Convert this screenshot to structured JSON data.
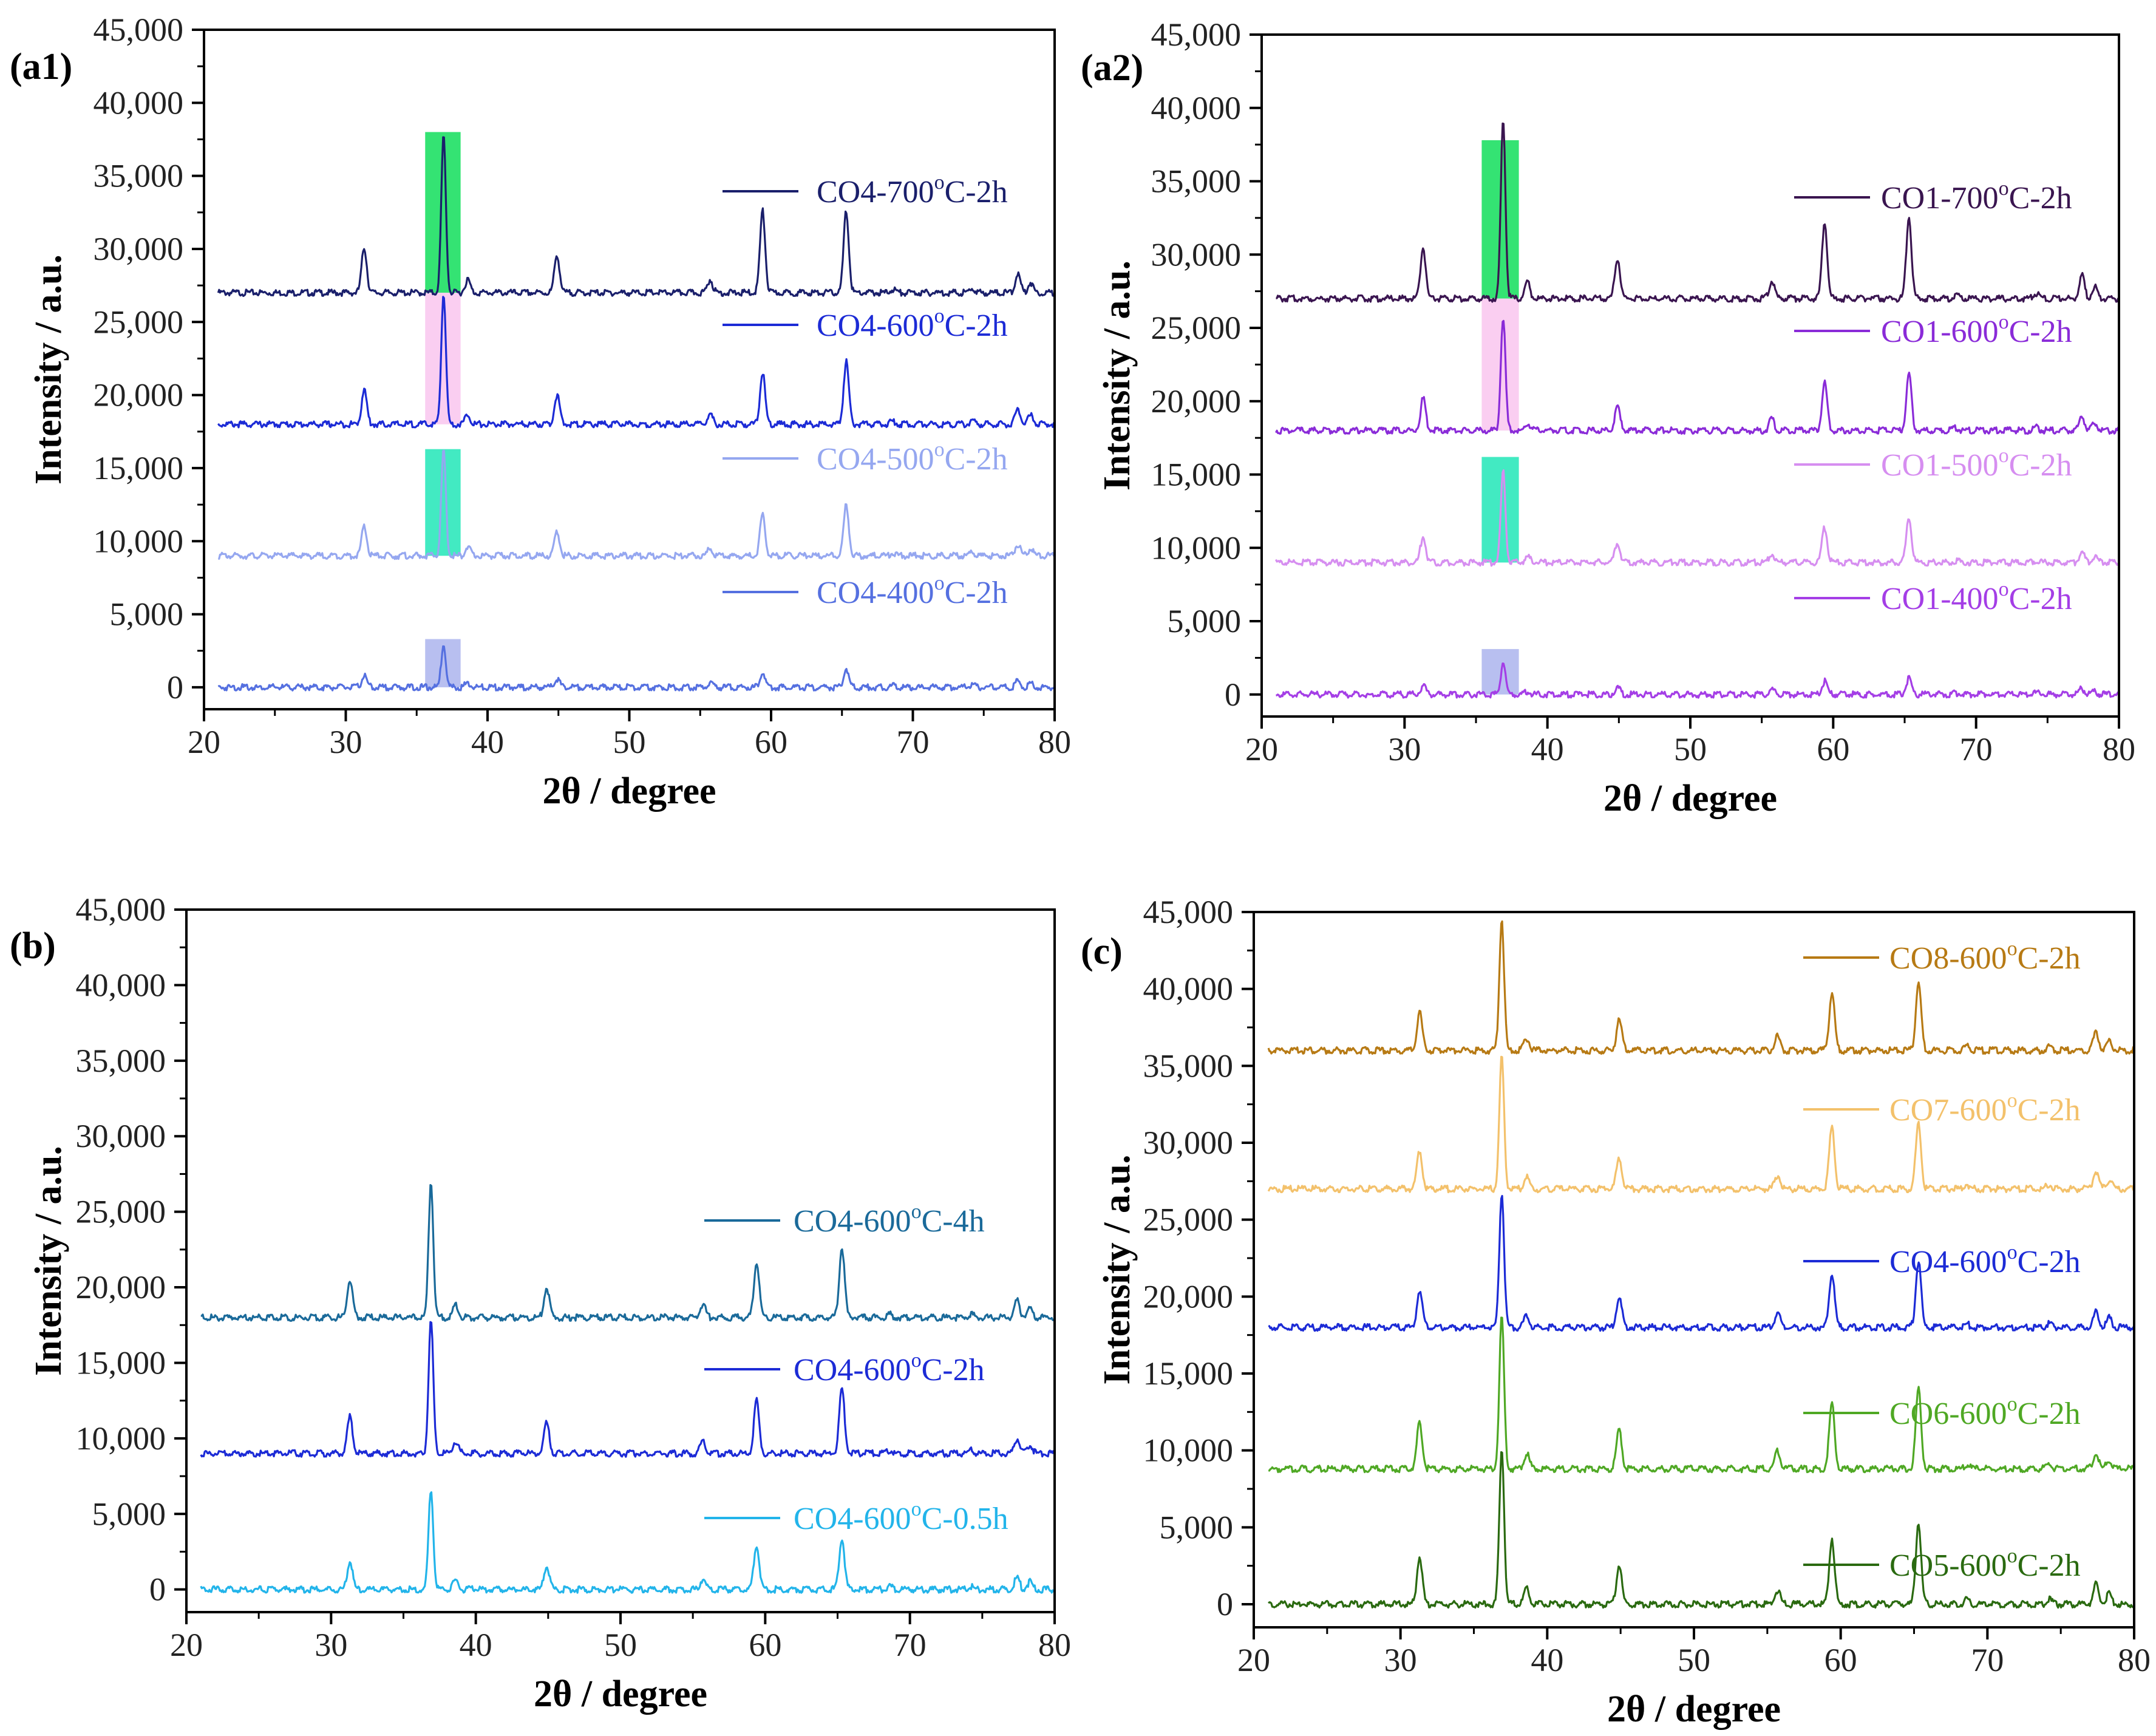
{
  "chart_data": [
    {
      "type": "line",
      "panel_label": "(a1)",
      "xlabel": "2θ / degree",
      "ylabel": "Intensity / a.u.",
      "xlim": [
        20,
        80
      ],
      "ylim": [
        -1500,
        45000
      ],
      "x_ticks": [
        20,
        30,
        40,
        50,
        60,
        70,
        80
      ],
      "y_ticks": [
        0,
        5000,
        10000,
        15000,
        20000,
        25000,
        30000,
        35000,
        40000,
        45000
      ],
      "y_tick_labels": [
        "0",
        "5,000",
        "10,000",
        "15,000",
        "20,000",
        "25,000",
        "30,000",
        "35,000",
        "40,000",
        "45,000"
      ],
      "peak_positions": [
        31.3,
        36.9,
        38.6,
        44.9,
        55.7,
        59.4,
        65.3,
        68.6,
        74.2,
        77.4,
        78.3
      ],
      "series": [
        {
          "name": "CO4-700°C-2h",
          "label_main": "CO4-700",
          "label_sup": "o",
          "label_tail": "C-2h",
          "color": "#1a1f6b",
          "baseline": 27000,
          "peaks": [
            3100,
            10800,
            900,
            2600,
            900,
            5600,
            5600,
            250,
            300,
            1300,
            700
          ]
        },
        {
          "name": "CO4-600°C-2h",
          "label_main": "CO4-600",
          "label_sup": "o",
          "label_tail": "C-2h",
          "color": "#1c2bd6",
          "baseline": 18000,
          "peaks": [
            2400,
            9000,
            700,
            2000,
            700,
            3500,
            4300,
            200,
            250,
            1000,
            600
          ]
        },
        {
          "name": "CO4-500°C-2h",
          "label_main": "CO4-500",
          "label_sup": "o",
          "label_tail": "C-2h",
          "color": "#95a7f0",
          "baseline": 9000,
          "peaks": [
            2000,
            7200,
            600,
            1600,
            500,
            2800,
            3500,
            200,
            250,
            800,
            500
          ]
        },
        {
          "name": "CO4-400°C-2h",
          "label_main": "CO4-400",
          "label_sup": "o",
          "label_tail": "C-2h",
          "color": "#5570e0",
          "baseline": 0,
          "peaks": [
            800,
            3000,
            300,
            600,
            300,
            1000,
            1300,
            100,
            100,
            400,
            300
          ]
        }
      ],
      "highlights": [
        {
          "y0": 27000,
          "y1": 38000,
          "color": "#1ee064"
        },
        {
          "y0": 18000,
          "y1": 27000,
          "color": "#f9c9f0"
        },
        {
          "y0": 9000,
          "y1": 16300,
          "color": "#2ee8bb"
        },
        {
          "y0": 0,
          "y1": 3300,
          "color": "#b0b8ee"
        }
      ],
      "highlight_x": [
        35.6,
        38.1
      ]
    },
    {
      "type": "line",
      "panel_label": "(a2)",
      "xlabel": "2θ / degree",
      "ylabel": "Intensity / a.u.",
      "xlim": [
        20,
        80
      ],
      "ylim": [
        -1500,
        45000
      ],
      "x_ticks": [
        20,
        30,
        40,
        50,
        60,
        70,
        80
      ],
      "y_ticks": [
        0,
        5000,
        10000,
        15000,
        20000,
        25000,
        30000,
        35000,
        40000,
        45000
      ],
      "y_tick_labels": [
        "0",
        "5,000",
        "10,000",
        "15,000",
        "20,000",
        "25,000",
        "30,000",
        "35,000",
        "40,000",
        "45,000"
      ],
      "peak_positions": [
        31.3,
        36.9,
        38.6,
        44.9,
        55.7,
        59.4,
        65.3,
        68.6,
        74.2,
        77.4,
        78.3
      ],
      "series": [
        {
          "name": "CO1-700°C-2h",
          "label_main": "CO1-700",
          "label_sup": "o",
          "label_tail": "C-2h",
          "color": "#3a1550",
          "baseline": 27000,
          "peaks": [
            3500,
            12200,
            1100,
            2800,
            1200,
            5200,
            5600,
            300,
            350,
            1600,
            800
          ]
        },
        {
          "name": "CO1-600°C-2h",
          "label_main": "CO1-600",
          "label_sup": "o",
          "label_tail": "C-2h",
          "color": "#8a2bd8",
          "baseline": 18000,
          "peaks": [
            2200,
            7800,
            500,
            1600,
            800,
            3300,
            3900,
            200,
            200,
            1000,
            500
          ]
        },
        {
          "name": "CO1-500°C-2h",
          "label_main": "CO1-500",
          "label_sup": "o",
          "label_tail": "C-2h",
          "color": "#d68ef0",
          "baseline": 9000,
          "peaks": [
            1800,
            6200,
            400,
            1300,
            600,
            2400,
            3100,
            150,
            150,
            700,
            400
          ]
        },
        {
          "name": "CO1-400°C-2h",
          "label_main": "CO1-400",
          "label_sup": "o",
          "label_tail": "C-2h",
          "color": "#a43ee6",
          "baseline": 0,
          "peaks": [
            600,
            2200,
            200,
            500,
            300,
            900,
            1100,
            100,
            100,
            400,
            200
          ]
        }
      ],
      "highlights": [
        {
          "y0": 27000,
          "y1": 37800,
          "color": "#1ee064"
        },
        {
          "y0": 18000,
          "y1": 27000,
          "color": "#f9c9f0"
        },
        {
          "y0": 9000,
          "y1": 16200,
          "color": "#2ee8bb"
        },
        {
          "y0": 0,
          "y1": 3100,
          "color": "#b0b8ee"
        }
      ],
      "highlight_x": [
        35.4,
        38.0
      ]
    },
    {
      "type": "line",
      "panel_label": "(b)",
      "xlabel": "2θ / degree",
      "ylabel": "Intensity / a.u.",
      "xlim": [
        20,
        80
      ],
      "ylim": [
        -1500,
        45000
      ],
      "x_ticks": [
        20,
        30,
        40,
        50,
        60,
        70,
        80
      ],
      "y_ticks": [
        0,
        5000,
        10000,
        15000,
        20000,
        25000,
        30000,
        35000,
        40000,
        45000
      ],
      "y_tick_labels": [
        "0",
        "5,000",
        "10,000",
        "15,000",
        "20,000",
        "25,000",
        "30,000",
        "35,000",
        "40,000",
        "45,000"
      ],
      "peak_positions": [
        31.3,
        36.9,
        38.6,
        44.9,
        55.7,
        59.4,
        65.3,
        68.6,
        74.2,
        77.4,
        78.3
      ],
      "series": [
        {
          "name": "CO4-600°C-4h",
          "label_main": "CO4-600",
          "label_sup": "o",
          "label_tail": "C-4h",
          "color": "#1a6a9a",
          "baseline": 18000,
          "peaks": [
            2500,
            9000,
            800,
            2000,
            900,
            3700,
            4700,
            200,
            250,
            1100,
            600
          ]
        },
        {
          "name": "CO4-600°C-2h",
          "label_main": "CO4-600",
          "label_sup": "o",
          "label_tail": "C-2h",
          "color": "#1c2bd6",
          "baseline": 9000,
          "peaks": [
            2400,
            8800,
            800,
            2000,
            900,
            3500,
            4300,
            200,
            250,
            1000,
            600
          ]
        },
        {
          "name": "CO4-600°C-0.5h",
          "label_main": "CO4-600",
          "label_sup": "o",
          "label_tail": "C-0.5h",
          "color": "#22b4ea",
          "baseline": 0,
          "peaks": [
            1900,
            6700,
            600,
            1600,
            700,
            3000,
            3400,
            200,
            200,
            800,
            500
          ]
        }
      ],
      "highlights": [],
      "highlight_x": []
    },
    {
      "type": "line",
      "panel_label": "(c)",
      "xlabel": "2θ / degree",
      "ylabel": "Intensity / a.u.",
      "xlim": [
        20,
        80
      ],
      "ylim": [
        -1500,
        45000
      ],
      "x_ticks": [
        20,
        30,
        40,
        50,
        60,
        70,
        80
      ],
      "y_ticks": [
        0,
        5000,
        10000,
        15000,
        20000,
        25000,
        30000,
        35000,
        40000,
        45000
      ],
      "y_tick_labels": [
        "0",
        "5,000",
        "10,000",
        "15,000",
        "20,000",
        "25,000",
        "30,000",
        "35,000",
        "40,000",
        "45,000"
      ],
      "peak_positions": [
        31.3,
        36.9,
        38.6,
        44.9,
        55.7,
        59.4,
        65.3,
        68.6,
        74.2,
        77.4,
        78.3
      ],
      "series": [
        {
          "name": "CO8-600°C-2h",
          "label_main": "CO8-600",
          "label_sup": "o",
          "label_tail": "C-2h",
          "color": "#b77a14",
          "baseline": 36000,
          "peaks": [
            2500,
            8600,
            800,
            2000,
            900,
            3800,
            4400,
            300,
            300,
            1200,
            600
          ]
        },
        {
          "name": "CO7-600°C-2h",
          "label_main": "CO7-600",
          "label_sup": "o",
          "label_tail": "C-2h",
          "color": "#f3c16b",
          "baseline": 27000,
          "peaks": [
            2500,
            8600,
            800,
            2000,
            900,
            4000,
            4300,
            300,
            300,
            1200,
            600
          ]
        },
        {
          "name": "CO4-600°C-2h",
          "label_main": "CO4-600",
          "label_sup": "o",
          "label_tail": "C-2h",
          "color": "#1c2bd6",
          "baseline": 18000,
          "peaks": [
            2400,
            8800,
            800,
            2000,
            900,
            3500,
            4300,
            200,
            250,
            1000,
            600
          ]
        },
        {
          "name": "CO6-600°C-2h",
          "label_main": "CO6-600",
          "label_sup": "o",
          "label_tail": "C-2h",
          "color": "#4fa824",
          "baseline": 8800,
          "peaks": [
            3000,
            10000,
            1000,
            2500,
            1200,
            4300,
            5200,
            300,
            300,
            1100,
            600
          ]
        },
        {
          "name": "CO5-600°C-2h",
          "label_main": "CO5-600",
          "label_sup": "o",
          "label_tail": "C-2h",
          "color": "#2a6a10",
          "baseline": 0,
          "peaks": [
            3100,
            10200,
            1000,
            2600,
            900,
            4300,
            5300,
            300,
            300,
            1300,
            700
          ]
        }
      ],
      "highlights": [],
      "highlight_x": []
    }
  ]
}
